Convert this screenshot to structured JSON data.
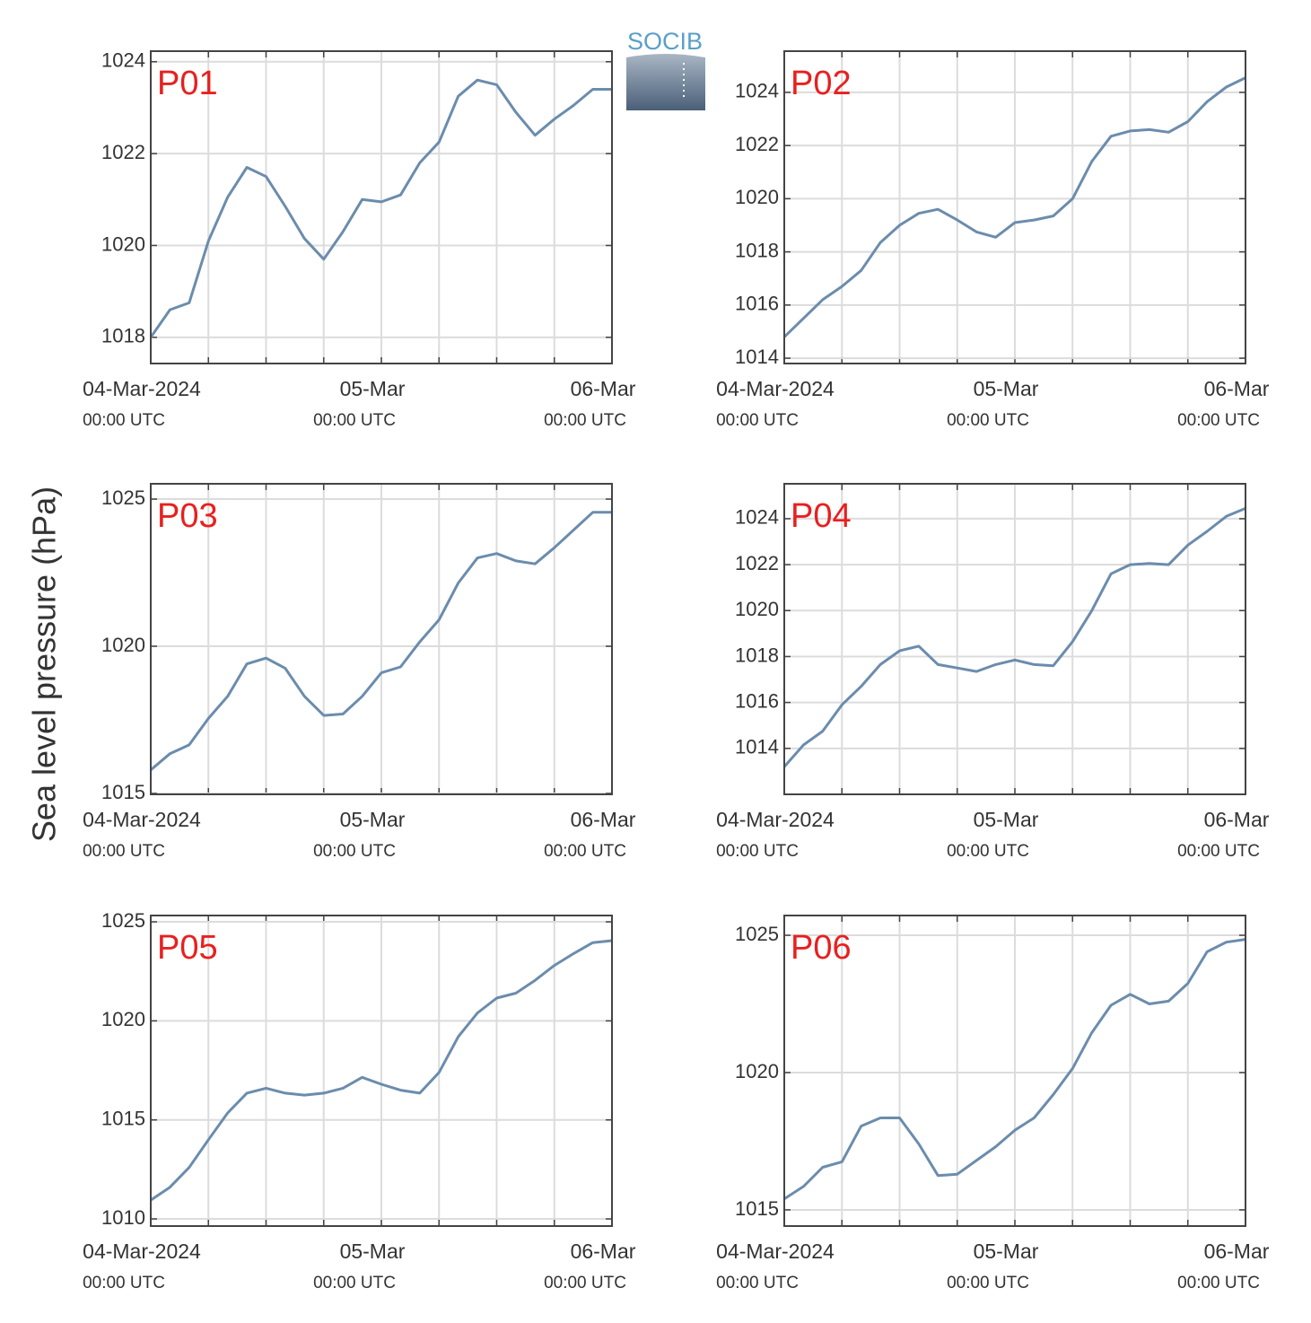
{
  "ylabel": "Sea level pressure (hPa)",
  "logo": "SOCIB",
  "chart_data": [
    {
      "type": "line",
      "title": "P01",
      "x": [
        0,
        2,
        4,
        6,
        8,
        10,
        12,
        14,
        16,
        18,
        20,
        22,
        24,
        26,
        28,
        30,
        32,
        34,
        36,
        38,
        40,
        42,
        44,
        46,
        48
      ],
      "series": [
        {
          "color": "#6b8cad",
          "values": [
            1018.0,
            1018.6,
            1018.75,
            1020.1,
            1021.05,
            1021.7,
            1021.5,
            1020.85,
            1020.15,
            1019.7,
            1020.3,
            1021.0,
            1020.95,
            1021.1,
            1021.8,
            1022.25,
            1023.25,
            1023.6,
            1023.5,
            1022.9,
            1022.4,
            1022.75,
            1023.05,
            1023.4,
            1023.4
          ]
        }
      ],
      "xlim": [
        0,
        48
      ],
      "xticks": [
        {
          "value": 0,
          "label": "04-Mar-2024",
          "sublabel": "00:00 UTC"
        },
        {
          "value": 24,
          "label": "05-Mar",
          "sublabel": "00:00 UTC"
        },
        {
          "value": 48,
          "label": "06-Mar",
          "sublabel": "00:00 UTC"
        }
      ],
      "xminor_ticks": [
        6,
        12,
        18,
        30,
        36,
        42
      ],
      "ylim": [
        1017.43,
        1024.23
      ],
      "yticks": [
        1018,
        1020,
        1022,
        1024
      ],
      "grid": true
    },
    {
      "type": "line",
      "title": "P02",
      "x": [
        0,
        2,
        4,
        6,
        8,
        10,
        12,
        14,
        16,
        18,
        20,
        22,
        24,
        26,
        28,
        30,
        32,
        34,
        36,
        38,
        40,
        42,
        44,
        46,
        48
      ],
      "series": [
        {
          "color": "#6b8cad",
          "values": [
            1014.8,
            1015.5,
            1016.2,
            1016.7,
            1017.3,
            1018.35,
            1019.0,
            1019.45,
            1019.6,
            1019.2,
            1018.75,
            1018.55,
            1019.1,
            1019.2,
            1019.35,
            1020.0,
            1021.4,
            1022.35,
            1022.55,
            1022.6,
            1022.5,
            1022.9,
            1023.65,
            1024.2,
            1024.55
          ]
        }
      ],
      "xlim": [
        0,
        48
      ],
      "xticks": [
        {
          "value": 0,
          "label": "04-Mar-2024",
          "sublabel": "00:00 UTC"
        },
        {
          "value": 24,
          "label": "05-Mar",
          "sublabel": "00:00 UTC"
        },
        {
          "value": 48,
          "label": "06-Mar",
          "sublabel": "00:00 UTC"
        }
      ],
      "xminor_ticks": [
        6,
        12,
        18,
        30,
        36,
        42
      ],
      "ylim": [
        1013.8,
        1025.55
      ],
      "yticks": [
        1014,
        1016,
        1018,
        1020,
        1022,
        1024
      ],
      "grid": true
    },
    {
      "type": "line",
      "title": "P03",
      "x": [
        0,
        2,
        4,
        6,
        8,
        10,
        12,
        14,
        16,
        18,
        20,
        22,
        24,
        26,
        28,
        30,
        32,
        34,
        36,
        38,
        40,
        42,
        44,
        46,
        48
      ],
      "series": [
        {
          "color": "#6b8cad",
          "values": [
            1015.8,
            1016.35,
            1016.65,
            1017.55,
            1018.3,
            1019.4,
            1019.6,
            1019.25,
            1018.3,
            1017.65,
            1017.7,
            1018.3,
            1019.1,
            1019.3,
            1020.15,
            1020.9,
            1022.15,
            1023.0,
            1023.15,
            1022.9,
            1022.8,
            1023.35,
            1023.95,
            1024.55,
            1024.55
          ]
        }
      ],
      "xlim": [
        0,
        48
      ],
      "xticks": [
        {
          "value": 0,
          "label": "04-Mar-2024",
          "sublabel": "00:00 UTC"
        },
        {
          "value": 24,
          "label": "05-Mar",
          "sublabel": "00:00 UTC"
        },
        {
          "value": 48,
          "label": "06-Mar",
          "sublabel": "00:00 UTC"
        }
      ],
      "xminor_ticks": [
        6,
        12,
        18,
        30,
        36,
        42
      ],
      "ylim": [
        1014.97,
        1025.52
      ],
      "yticks": [
        1015,
        1020,
        1025
      ],
      "grid": true
    },
    {
      "type": "line",
      "title": "P04",
      "x": [
        0,
        2,
        4,
        6,
        8,
        10,
        12,
        14,
        16,
        18,
        20,
        22,
        24,
        26,
        28,
        30,
        32,
        34,
        36,
        38,
        40,
        42,
        44,
        46,
        48
      ],
      "series": [
        {
          "color": "#6b8cad",
          "values": [
            1013.2,
            1014.15,
            1014.75,
            1015.9,
            1016.7,
            1017.65,
            1018.25,
            1018.45,
            1017.65,
            1017.5,
            1017.35,
            1017.65,
            1017.85,
            1017.65,
            1017.6,
            1018.65,
            1020.0,
            1021.6,
            1022.0,
            1022.05,
            1022.0,
            1022.85,
            1023.45,
            1024.1,
            1024.45
          ]
        }
      ],
      "xlim": [
        0,
        48
      ],
      "xticks": [
        {
          "value": 0,
          "label": "04-Mar-2024",
          "sublabel": "00:00 UTC"
        },
        {
          "value": 24,
          "label": "05-Mar",
          "sublabel": "00:00 UTC"
        },
        {
          "value": 48,
          "label": "06-Mar",
          "sublabel": "00:00 UTC"
        }
      ],
      "xminor_ticks": [
        6,
        12,
        18,
        30,
        36,
        42
      ],
      "ylim": [
        1012.0,
        1025.52
      ],
      "yticks": [
        1014,
        1016,
        1018,
        1020,
        1022,
        1024
      ],
      "grid": true
    },
    {
      "type": "line",
      "title": "P05",
      "x": [
        0,
        2,
        4,
        6,
        8,
        10,
        12,
        14,
        16,
        18,
        20,
        22,
        24,
        26,
        28,
        30,
        32,
        34,
        36,
        38,
        40,
        42,
        44,
        46,
        48
      ],
      "series": [
        {
          "color": "#6b8cad",
          "values": [
            1010.95,
            1011.6,
            1012.6,
            1014.0,
            1015.35,
            1016.35,
            1016.6,
            1016.35,
            1016.25,
            1016.35,
            1016.6,
            1017.15,
            1016.8,
            1016.5,
            1016.35,
            1017.4,
            1019.2,
            1020.4,
            1021.15,
            1021.4,
            1022.05,
            1022.8,
            1023.4,
            1023.95,
            1024.05
          ]
        }
      ],
      "xlim": [
        0,
        48
      ],
      "xticks": [
        {
          "value": 0,
          "label": "04-Mar-2024",
          "sublabel": "00:00 UTC"
        },
        {
          "value": 24,
          "label": "05-Mar",
          "sublabel": "00:00 UTC"
        },
        {
          "value": 48,
          "label": "06-Mar",
          "sublabel": "00:00 UTC"
        }
      ],
      "xminor_ticks": [
        6,
        12,
        18,
        30,
        36,
        42
      ],
      "ylim": [
        1009.64,
        1025.32
      ],
      "yticks": [
        1010,
        1015,
        1020,
        1025
      ],
      "grid": true
    },
    {
      "type": "line",
      "title": "P06",
      "x": [
        0,
        2,
        4,
        6,
        8,
        10,
        12,
        14,
        16,
        18,
        20,
        22,
        24,
        26,
        28,
        30,
        32,
        34,
        36,
        38,
        40,
        42,
        44,
        46,
        48
      ],
      "series": [
        {
          "color": "#6b8cad",
          "values": [
            1015.4,
            1015.85,
            1016.55,
            1016.75,
            1018.05,
            1018.35,
            1018.35,
            1017.4,
            1016.25,
            1016.3,
            1016.8,
            1017.3,
            1017.9,
            1018.35,
            1019.2,
            1020.15,
            1021.45,
            1022.45,
            1022.85,
            1022.5,
            1022.6,
            1023.25,
            1024.4,
            1024.75,
            1024.85
          ]
        }
      ],
      "xlim": [
        0,
        48
      ],
      "xticks": [
        {
          "value": 0,
          "label": "04-Mar-2024",
          "sublabel": "00:00 UTC"
        },
        {
          "value": 24,
          "label": "05-Mar",
          "sublabel": "00:00 UTC"
        },
        {
          "value": 48,
          "label": "06-Mar",
          "sublabel": "00:00 UTC"
        }
      ],
      "xminor_ticks": [
        6,
        12,
        18,
        30,
        36,
        42
      ],
      "ylim": [
        1014.41,
        1025.72
      ],
      "yticks": [
        1015,
        1020,
        1025
      ],
      "grid": true
    }
  ]
}
